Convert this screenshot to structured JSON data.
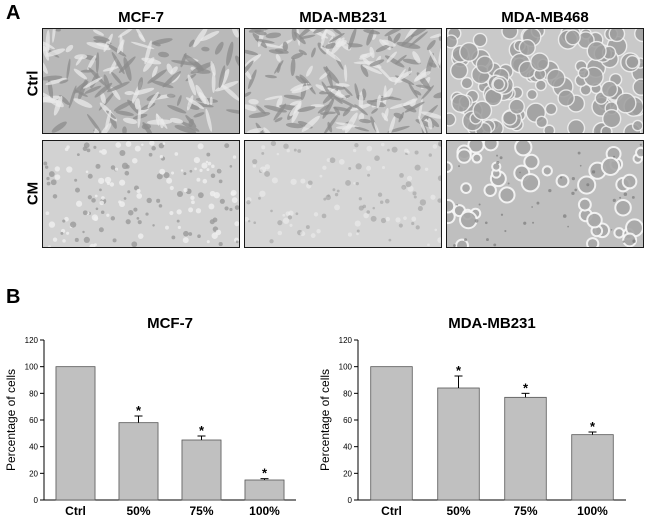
{
  "panel_a": {
    "letter": "A",
    "columns": [
      "MCF-7",
      "MDA-MB231",
      "MDA-MB468"
    ],
    "rows": [
      "Ctrl",
      "CM"
    ]
  },
  "panel_b": {
    "letter": "B"
  },
  "chart_data": [
    {
      "type": "bar",
      "title": "MCF-7",
      "ylabel": "Percentage of cells",
      "xlabel": "",
      "categories": [
        "Ctrl",
        "50%",
        "75%",
        "100%"
      ],
      "values": [
        100,
        58,
        45,
        15
      ],
      "errors": [
        0,
        5,
        3,
        1
      ],
      "significance": [
        "",
        "*",
        "*",
        "*"
      ],
      "ylim": [
        0,
        120
      ],
      "yticks": [
        0,
        20,
        40,
        60,
        80,
        100,
        120
      ],
      "bar_color": "#c0c0c0",
      "grid": false
    },
    {
      "type": "bar",
      "title": "MDA-MB231",
      "ylabel": "Percentage of cells",
      "xlabel": "",
      "categories": [
        "Ctrl",
        "50%",
        "75%",
        "100%"
      ],
      "values": [
        100,
        84,
        77,
        49
      ],
      "errors": [
        0,
        9,
        3,
        2
      ],
      "significance": [
        "",
        "*",
        "*",
        "*"
      ],
      "ylim": [
        0,
        120
      ],
      "yticks": [
        0,
        20,
        40,
        60,
        80,
        100,
        120
      ],
      "bar_color": "#c0c0c0",
      "grid": false
    }
  ]
}
